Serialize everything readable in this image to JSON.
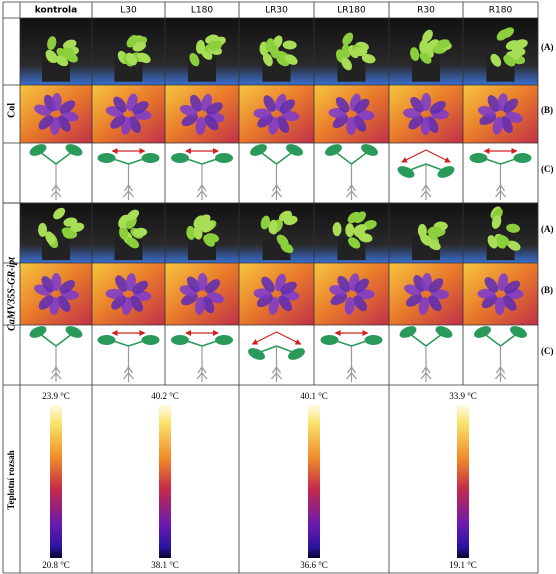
{
  "header": {
    "columns": [
      "kontrola",
      "L30",
      "L180",
      "LR30",
      "LR180",
      "R30",
      "R180"
    ]
  },
  "rows": [
    {
      "label": "Col"
    },
    {
      "label": "CaMV35S-GR-ipt"
    }
  ],
  "panel_labels": [
    "(A)",
    "(B)",
    "(C)"
  ],
  "scale": {
    "label": "Teplotní rozsah",
    "bars": [
      {
        "max": "23.9 °C",
        "min": "20.8 °C"
      },
      {
        "max": "40.2 °C",
        "min": "38.1 °C"
      },
      {
        "max": "40.1 °C",
        "min": "36.6 °C"
      },
      {
        "max": "33.9 °C",
        "min": "19.1 °C"
      }
    ]
  }
}
